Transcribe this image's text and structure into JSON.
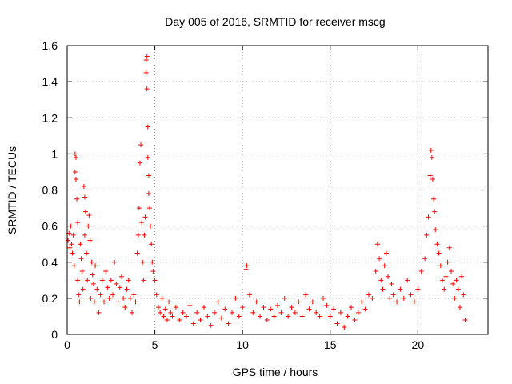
{
  "chart_data": {
    "type": "scatter",
    "title": "Day 005 of 2016, SRMTID for receiver mscg",
    "xlabel": "GPS time / hours",
    "ylabel": "SRMTID / TECUs",
    "xlim": [
      0,
      24
    ],
    "ylim": [
      0,
      1.6
    ],
    "xticks": [
      0,
      5,
      10,
      15,
      20
    ],
    "xtick_labels": [
      "0",
      "5",
      "10",
      "15",
      "20"
    ],
    "yticks": [
      0,
      0.2,
      0.4,
      0.6,
      0.8,
      1.0,
      1.2,
      1.4,
      1.6
    ],
    "ytick_labels": [
      "0",
      "0.2",
      "0.4",
      "0.6",
      "0.8",
      "1",
      "1.2",
      "1.4",
      "1.6"
    ],
    "grid": true,
    "marker": "+",
    "colors": {
      "series": "#ff0000",
      "grid": "#a0a0a0",
      "axis": "#000000"
    },
    "series": [
      {
        "name": "SRMTID",
        "points": [
          [
            0.05,
            0.52
          ],
          [
            0.1,
            0.56
          ],
          [
            0.15,
            0.48
          ],
          [
            0.2,
            0.6
          ],
          [
            0.25,
            0.5
          ],
          [
            0.3,
            0.45
          ],
          [
            0.35,
            0.55
          ],
          [
            0.4,
            0.38
          ],
          [
            0.45,
            0.9
          ],
          [
            0.45,
            1.0
          ],
          [
            0.5,
            0.98
          ],
          [
            0.5,
            0.86
          ],
          [
            0.55,
            0.75
          ],
          [
            0.6,
            0.62
          ],
          [
            0.6,
            0.3
          ],
          [
            0.65,
            0.22
          ],
          [
            0.7,
            0.18
          ],
          [
            0.75,
            0.5
          ],
          [
            0.8,
            0.42
          ],
          [
            0.85,
            0.35
          ],
          [
            0.9,
            0.25
          ],
          [
            0.95,
            0.82
          ],
          [
            1.0,
            0.76
          ],
          [
            1.0,
            0.55
          ],
          [
            1.05,
            0.68
          ],
          [
            1.1,
            0.45
          ],
          [
            1.15,
            0.3
          ],
          [
            1.2,
            0.6
          ],
          [
            1.25,
            0.66
          ],
          [
            1.3,
            0.52
          ],
          [
            1.35,
            0.2
          ],
          [
            1.4,
            0.4
          ],
          [
            1.45,
            0.33
          ],
          [
            1.5,
            0.28
          ],
          [
            1.55,
            0.18
          ],
          [
            1.6,
            0.38
          ],
          [
            1.7,
            0.25
          ],
          [
            1.8,
            0.12
          ],
          [
            1.9,
            0.22
          ],
          [
            2.0,
            0.3
          ],
          [
            2.1,
            0.18
          ],
          [
            2.2,
            0.35
          ],
          [
            2.3,
            0.26
          ],
          [
            2.4,
            0.2
          ],
          [
            2.5,
            0.3
          ],
          [
            2.6,
            0.22
          ],
          [
            2.7,
            0.4
          ],
          [
            2.8,
            0.28
          ],
          [
            2.9,
            0.18
          ],
          [
            3.0,
            0.26
          ],
          [
            3.1,
            0.32
          ],
          [
            3.2,
            0.2
          ],
          [
            3.3,
            0.15
          ],
          [
            3.4,
            0.25
          ],
          [
            3.5,
            0.3
          ],
          [
            3.6,
            0.2
          ],
          [
            3.7,
            0.12
          ],
          [
            3.8,
            0.22
          ],
          [
            3.9,
            0.18
          ],
          [
            4.0,
            0.45
          ],
          [
            4.05,
            0.55
          ],
          [
            4.1,
            0.7
          ],
          [
            4.15,
            0.95
          ],
          [
            4.2,
            1.05
          ],
          [
            4.25,
            0.62
          ],
          [
            4.3,
            0.4
          ],
          [
            4.35,
            0.3
          ],
          [
            4.4,
            0.55
          ],
          [
            4.45,
            0.65
          ],
          [
            4.5,
            1.52
          ],
          [
            4.5,
            1.45
          ],
          [
            4.55,
            1.36
          ],
          [
            4.55,
            1.54
          ],
          [
            4.6,
            1.15
          ],
          [
            4.6,
            0.98
          ],
          [
            4.65,
            0.88
          ],
          [
            4.65,
            0.78
          ],
          [
            4.7,
            0.7
          ],
          [
            4.75,
            0.6
          ],
          [
            4.8,
            0.5
          ],
          [
            4.85,
            0.4
          ],
          [
            4.9,
            0.35
          ],
          [
            5.0,
            0.3
          ],
          [
            5.1,
            0.22
          ],
          [
            5.2,
            0.15
          ],
          [
            5.3,
            0.12
          ],
          [
            5.4,
            0.2
          ],
          [
            5.5,
            0.1
          ],
          [
            5.6,
            0.14
          ],
          [
            5.7,
            0.08
          ],
          [
            5.8,
            0.18
          ],
          [
            5.9,
            0.12
          ],
          [
            6.0,
            0.1
          ],
          [
            6.2,
            0.15
          ],
          [
            6.4,
            0.08
          ],
          [
            6.6,
            0.12
          ],
          [
            6.8,
            0.1
          ],
          [
            7.0,
            0.16
          ],
          [
            7.2,
            0.06
          ],
          [
            7.4,
            0.12
          ],
          [
            7.6,
            0.08
          ],
          [
            7.8,
            0.15
          ],
          [
            8.0,
            0.1
          ],
          [
            8.2,
            0.05
          ],
          [
            8.4,
            0.12
          ],
          [
            8.6,
            0.18
          ],
          [
            8.8,
            0.09
          ],
          [
            9.0,
            0.14
          ],
          [
            9.2,
            0.06
          ],
          [
            9.4,
            0.12
          ],
          [
            9.6,
            0.2
          ],
          [
            9.8,
            0.1
          ],
          [
            10.0,
            0.15
          ],
          [
            10.2,
            0.36
          ],
          [
            10.25,
            0.38
          ],
          [
            10.4,
            0.22
          ],
          [
            10.6,
            0.12
          ],
          [
            10.8,
            0.18
          ],
          [
            11.0,
            0.1
          ],
          [
            11.2,
            0.15
          ],
          [
            11.4,
            0.08
          ],
          [
            11.6,
            0.14
          ],
          [
            11.8,
            0.1
          ],
          [
            12.0,
            0.16
          ],
          [
            12.2,
            0.12
          ],
          [
            12.4,
            0.2
          ],
          [
            12.6,
            0.1
          ],
          [
            12.8,
            0.15
          ],
          [
            13.0,
            0.12
          ],
          [
            13.2,
            0.18
          ],
          [
            13.4,
            0.1
          ],
          [
            13.6,
            0.22
          ],
          [
            13.8,
            0.14
          ],
          [
            14.0,
            0.18
          ],
          [
            14.2,
            0.12
          ],
          [
            14.4,
            0.1
          ],
          [
            14.6,
            0.2
          ],
          [
            14.8,
            0.16
          ],
          [
            15.0,
            0.1
          ],
          [
            15.2,
            0.14
          ],
          [
            15.4,
            0.06
          ],
          [
            15.6,
            0.12
          ],
          [
            15.8,
            0.04
          ],
          [
            16.0,
            0.1
          ],
          [
            16.2,
            0.15
          ],
          [
            16.4,
            0.08
          ],
          [
            16.6,
            0.12
          ],
          [
            16.8,
            0.18
          ],
          [
            17.0,
            0.14
          ],
          [
            17.2,
            0.22
          ],
          [
            17.4,
            0.2
          ],
          [
            17.6,
            0.35
          ],
          [
            17.7,
            0.5
          ],
          [
            17.8,
            0.42
          ],
          [
            17.9,
            0.3
          ],
          [
            18.0,
            0.25
          ],
          [
            18.1,
            0.38
          ],
          [
            18.2,
            0.45
          ],
          [
            18.3,
            0.32
          ],
          [
            18.4,
            0.2
          ],
          [
            18.5,
            0.28
          ],
          [
            18.6,
            0.22
          ],
          [
            18.8,
            0.18
          ],
          [
            19.0,
            0.25
          ],
          [
            19.2,
            0.2
          ],
          [
            19.4,
            0.3
          ],
          [
            19.6,
            0.22
          ],
          [
            19.8,
            0.18
          ],
          [
            20.0,
            0.25
          ],
          [
            20.2,
            0.35
          ],
          [
            20.4,
            0.42
          ],
          [
            20.5,
            0.55
          ],
          [
            20.6,
            0.65
          ],
          [
            20.7,
            0.88
          ],
          [
            20.75,
            1.02
          ],
          [
            20.8,
            0.98
          ],
          [
            20.85,
            0.86
          ],
          [
            20.9,
            0.75
          ],
          [
            20.95,
            0.68
          ],
          [
            21.0,
            0.58
          ],
          [
            21.1,
            0.5
          ],
          [
            21.2,
            0.45
          ],
          [
            21.3,
            0.38
          ],
          [
            21.4,
            0.3
          ],
          [
            21.5,
            0.25
          ],
          [
            21.6,
            0.32
          ],
          [
            21.7,
            0.4
          ],
          [
            21.8,
            0.48
          ],
          [
            21.9,
            0.35
          ],
          [
            22.0,
            0.28
          ],
          [
            22.1,
            0.2
          ],
          [
            22.2,
            0.3
          ],
          [
            22.3,
            0.25
          ],
          [
            22.4,
            0.15
          ],
          [
            22.5,
            0.32
          ],
          [
            22.6,
            0.22
          ],
          [
            22.7,
            0.08
          ]
        ]
      }
    ]
  }
}
